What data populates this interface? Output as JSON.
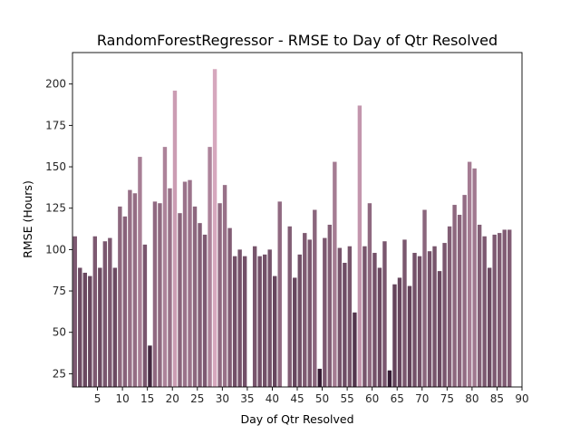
{
  "chart_data": {
    "type": "bar",
    "title": "RandomForestRegressor - RMSE to Day of Qtr Resolved",
    "xlabel": "Day of Qtr Resolved",
    "ylabel": "RMSE (Hours)",
    "xlim": [
      0,
      90
    ],
    "ylim": [
      17,
      219
    ],
    "xticks": [
      5,
      10,
      15,
      20,
      25,
      30,
      35,
      40,
      45,
      50,
      55,
      60,
      65,
      70,
      75,
      80,
      85,
      90
    ],
    "yticks": [
      25,
      50,
      75,
      100,
      125,
      150,
      175,
      200
    ],
    "grid": false,
    "legend": "none",
    "colormap": "cubehelix light-to-dark (purple), shade by value",
    "x": [
      0,
      1,
      2,
      3,
      4,
      5,
      6,
      7,
      8,
      9,
      10,
      11,
      12,
      13,
      14,
      15,
      16,
      17,
      18,
      19,
      20,
      21,
      22,
      23,
      24,
      25,
      26,
      27,
      28,
      29,
      30,
      31,
      32,
      33,
      34,
      35,
      36,
      37,
      38,
      39,
      40,
      41,
      42,
      43,
      44,
      45,
      46,
      47,
      48,
      49,
      50,
      51,
      52,
      53,
      54,
      55,
      56,
      57,
      58,
      59,
      60,
      61,
      62,
      63,
      64,
      65,
      66,
      67,
      68,
      69,
      70,
      71,
      72,
      73,
      74,
      75,
      76,
      77,
      78,
      79,
      80,
      81,
      82,
      83,
      84,
      85,
      86,
      87,
      88,
      89
    ],
    "values": [
      108,
      89,
      86,
      84,
      108,
      89,
      105,
      107,
      89,
      126,
      120,
      136,
      134,
      156,
      103,
      42,
      129,
      128,
      162,
      137,
      196,
      122,
      141,
      142,
      126,
      116,
      109,
      162,
      209,
      128,
      139,
      113,
      96,
      100,
      96,
      null,
      102,
      96,
      97,
      100,
      84,
      129,
      null,
      114,
      83,
      97,
      110,
      106,
      124,
      28,
      107,
      115,
      153,
      101,
      92,
      102,
      62,
      187,
      102,
      128,
      98,
      89,
      105,
      27,
      79,
      83,
      106,
      78,
      98,
      96,
      124,
      99,
      102,
      87,
      104,
      114,
      127,
      121,
      133,
      153,
      149,
      115,
      108,
      89,
      109,
      110,
      112,
      112,
      null,
      null
    ]
  }
}
